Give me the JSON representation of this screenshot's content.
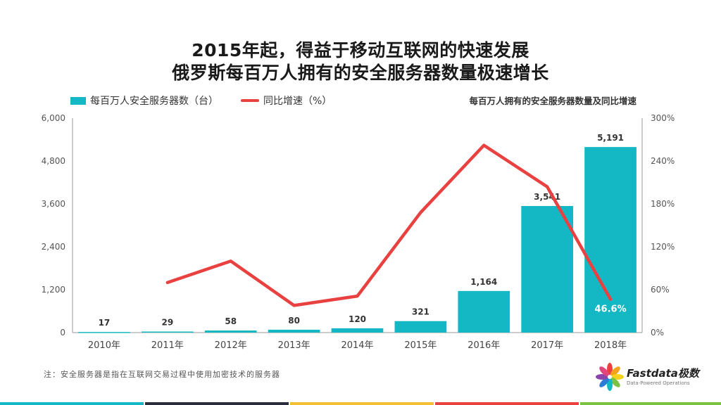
{
  "title_line1": "2015年起，得益于移动互联网的快速发展",
  "title_line2": "俄罗斯每百万人拥有的安全服务器数量极速增长",
  "chart_subtitle": "每百万人拥有的安全服务器数量及同比增速",
  "footnote": "注：安全服务器是指在互联网交易过程中使用加密技术的服务器",
  "logo": {
    "brand": "Fastdata极数",
    "tagline": "Data-Powered Operations"
  },
  "colors": {
    "bar": "#13b8c4",
    "line": "#e8413f",
    "axis": "#555555",
    "grid": "#e6e6e6"
  },
  "chart_data": {
    "type": "bar",
    "categories": [
      "2010年",
      "2011年",
      "2012年",
      "2013年",
      "2014年",
      "2015年",
      "2016年",
      "2017年",
      "2018年"
    ],
    "series": [
      {
        "name": "每百万人安全服务器数（台）",
        "type": "bar",
        "axis": "left",
        "values": [
          17,
          29,
          58,
          80,
          120,
          321,
          1164,
          3541,
          5191
        ],
        "labels": [
          "17",
          "29",
          "58",
          "80",
          "120",
          "321",
          "1,164",
          "3,541",
          "5,191"
        ]
      },
      {
        "name": "同比增速（%）",
        "type": "line",
        "axis": "right",
        "values": [
          null,
          70,
          100,
          38,
          51,
          168,
          262,
          204,
          46.6
        ]
      }
    ],
    "y_left": {
      "ylim": [
        0,
        6000
      ],
      "ticks": [
        "0",
        "1,200",
        "2,400",
        "3,600",
        "4,800",
        "6,000"
      ]
    },
    "y_right": {
      "ylim": [
        0,
        300
      ],
      "ticks": [
        "0%",
        "60%",
        "120%",
        "180%",
        "240%",
        "300%"
      ]
    },
    "annotation": "46.6%",
    "grid": false,
    "legend": "top-left"
  }
}
